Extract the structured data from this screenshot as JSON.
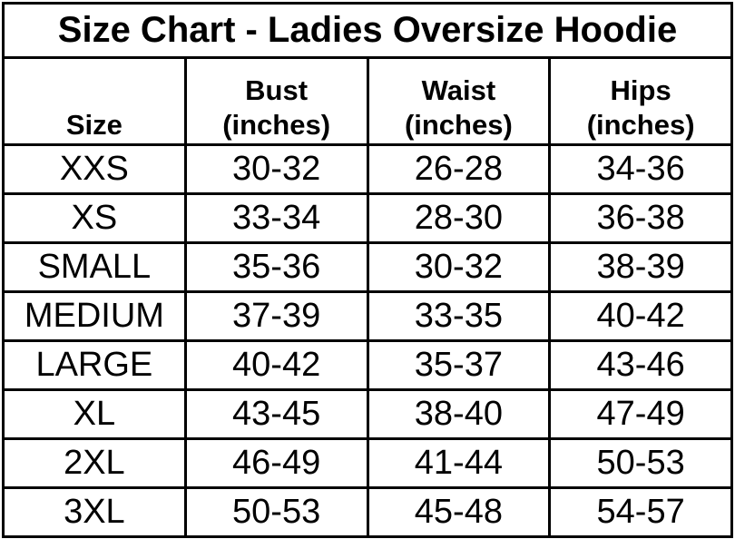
{
  "chart_data": {
    "type": "table",
    "title": "Size Chart - Ladies Oversize Hoodie",
    "columns": [
      "Size",
      "Bust (inches)",
      "Waist (inches)",
      "Hips (inches)"
    ],
    "headers": [
      {
        "line1": "",
        "line2": "Size"
      },
      {
        "line1": "Bust",
        "line2": "(inches)"
      },
      {
        "line1": "Waist",
        "line2": "(inches)"
      },
      {
        "line1": "Hips",
        "line2": "(inches)"
      }
    ],
    "rows": [
      {
        "size": "XXS",
        "bust": "30-32",
        "waist": "26-28",
        "hips": "34-36"
      },
      {
        "size": "XS",
        "bust": "33-34",
        "waist": "28-30",
        "hips": "36-38"
      },
      {
        "size": "SMALL",
        "bust": "35-36",
        "waist": "30-32",
        "hips": "38-39"
      },
      {
        "size": "MEDIUM",
        "bust": "37-39",
        "waist": "33-35",
        "hips": "40-42"
      },
      {
        "size": "LARGE",
        "bust": "40-42",
        "waist": "35-37",
        "hips": "43-46"
      },
      {
        "size": "XL",
        "bust": "43-45",
        "waist": "38-40",
        "hips": "47-49"
      },
      {
        "size": "2XL",
        "bust": "46-49",
        "waist": "41-44",
        "hips": "50-53"
      },
      {
        "size": "3XL",
        "bust": "50-53",
        "waist": "45-48",
        "hips": "54-57"
      }
    ],
    "layout": {
      "grid": true,
      "border_color": "#000000",
      "background_color": "#ffffff",
      "text_color": "#000000",
      "column_count": 4,
      "data_row_count": 8
    }
  }
}
